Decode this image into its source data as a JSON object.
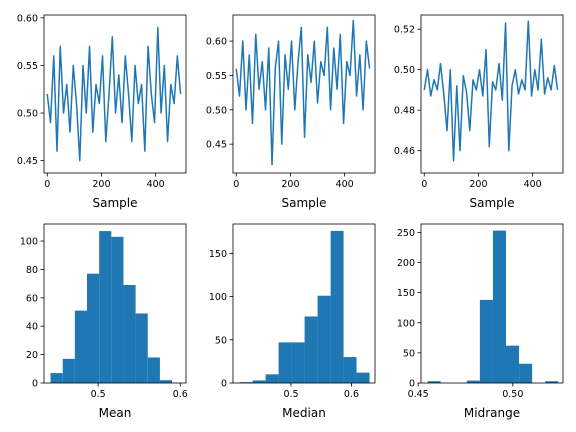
{
  "colors": {
    "series": "#1f77b4",
    "axes": "#000000",
    "background": "#ffffff"
  },
  "chart_data": [
    {
      "type": "line",
      "xlabel": "Sample",
      "ylabel": "",
      "xlim": [
        -12,
        512
      ],
      "ylim": [
        0.437,
        0.603
      ],
      "xticks": [
        0,
        200,
        400
      ],
      "xtick_labels": [
        "0",
        "200",
        "400"
      ],
      "yticks": [
        0.45,
        0.5,
        0.55,
        0.6
      ],
      "ytick_labels": [
        "0.45",
        "0.50",
        "0.55",
        "0.60"
      ],
      "grid": false,
      "x": [
        0,
        12,
        24,
        36,
        48,
        60,
        72,
        84,
        96,
        108,
        120,
        132,
        144,
        156,
        168,
        180,
        192,
        204,
        216,
        228,
        240,
        252,
        264,
        276,
        288,
        300,
        312,
        324,
        336,
        348,
        360,
        372,
        384,
        396,
        408,
        420,
        432,
        444,
        456,
        468,
        480,
        492
      ],
      "y": [
        0.52,
        0.49,
        0.56,
        0.46,
        0.57,
        0.5,
        0.53,
        0.48,
        0.55,
        0.51,
        0.45,
        0.55,
        0.5,
        0.57,
        0.48,
        0.53,
        0.51,
        0.56,
        0.47,
        0.52,
        0.58,
        0.5,
        0.54,
        0.49,
        0.56,
        0.52,
        0.47,
        0.55,
        0.51,
        0.53,
        0.46,
        0.57,
        0.52,
        0.49,
        0.59,
        0.5,
        0.55,
        0.47,
        0.53,
        0.51,
        0.56,
        0.52
      ]
    },
    {
      "type": "line",
      "xlabel": "Sample",
      "ylabel": "",
      "xlim": [
        -12,
        512
      ],
      "ylim": [
        0.408,
        0.638
      ],
      "xticks": [
        0,
        200,
        400
      ],
      "xtick_labels": [
        "0",
        "200",
        "400"
      ],
      "yticks": [
        0.45,
        0.5,
        0.55,
        0.6
      ],
      "ytick_labels": [
        "0.45",
        "0.50",
        "0.55",
        "0.60"
      ],
      "grid": false,
      "x": [
        0,
        12,
        24,
        36,
        48,
        60,
        72,
        84,
        96,
        108,
        120,
        132,
        144,
        156,
        168,
        180,
        192,
        204,
        216,
        228,
        240,
        252,
        264,
        276,
        288,
        300,
        312,
        324,
        336,
        348,
        360,
        372,
        384,
        396,
        408,
        420,
        432,
        444,
        456,
        468,
        480,
        492
      ],
      "y": [
        0.56,
        0.52,
        0.6,
        0.5,
        0.58,
        0.48,
        0.61,
        0.53,
        0.57,
        0.5,
        0.59,
        0.42,
        0.56,
        0.6,
        0.45,
        0.58,
        0.53,
        0.6,
        0.5,
        0.57,
        0.62,
        0.46,
        0.58,
        0.54,
        0.6,
        0.51,
        0.57,
        0.55,
        0.62,
        0.5,
        0.59,
        0.53,
        0.61,
        0.48,
        0.57,
        0.55,
        0.63,
        0.52,
        0.58,
        0.5,
        0.6,
        0.56
      ]
    },
    {
      "type": "line",
      "xlabel": "Sample",
      "ylabel": "",
      "xlim": [
        -12,
        512
      ],
      "ylim": [
        0.449,
        0.527
      ],
      "xticks": [
        0,
        200,
        400
      ],
      "xtick_labels": [
        "0",
        "200",
        "400"
      ],
      "yticks": [
        0.46,
        0.48,
        0.5,
        0.52
      ],
      "ytick_labels": [
        "0.46",
        "0.48",
        "0.50",
        "0.52"
      ],
      "grid": false,
      "x": [
        0,
        12,
        24,
        36,
        48,
        60,
        72,
        84,
        96,
        108,
        120,
        132,
        144,
        156,
        168,
        180,
        192,
        204,
        216,
        228,
        240,
        252,
        264,
        276,
        288,
        300,
        312,
        324,
        336,
        348,
        360,
        372,
        384,
        396,
        408,
        420,
        432,
        444,
        456,
        468,
        480,
        492
      ],
      "y": [
        0.49,
        0.5,
        0.487,
        0.495,
        0.49,
        0.503,
        0.488,
        0.47,
        0.5,
        0.455,
        0.492,
        0.46,
        0.497,
        0.489,
        0.47,
        0.495,
        0.49,
        0.5,
        0.487,
        0.51,
        0.462,
        0.494,
        0.49,
        0.503,
        0.485,
        0.523,
        0.46,
        0.492,
        0.5,
        0.488,
        0.495,
        0.49,
        0.524,
        0.487,
        0.5,
        0.49,
        0.515,
        0.488,
        0.496,
        0.49,
        0.502,
        0.49
      ]
    },
    {
      "type": "bar",
      "xlabel": "Mean",
      "ylabel": "",
      "xlim": [
        0.434,
        0.607
      ],
      "ylim": [
        0,
        112
      ],
      "xticks": [
        0.5,
        0.6
      ],
      "xtick_labels": [
        "0.5",
        "0.6"
      ],
      "yticks": [
        0,
        20,
        40,
        60,
        80,
        100
      ],
      "ytick_labels": [
        "0",
        "20",
        "40",
        "60",
        "80",
        "100"
      ],
      "grid": false,
      "bin_edges": [
        0.442,
        0.4568,
        0.4716,
        0.4864,
        0.5012,
        0.516,
        0.5308,
        0.5456,
        0.5604,
        0.5752,
        0.59
      ],
      "values": [
        7,
        17,
        51,
        77,
        107,
        103,
        69,
        49,
        18,
        2
      ]
    },
    {
      "type": "bar",
      "xlabel": "Median",
      "ylabel": "",
      "xlim": [
        0.404,
        0.639
      ],
      "ylim": [
        0,
        184
      ],
      "xticks": [
        0.5,
        0.6
      ],
      "xtick_labels": [
        "0.5",
        "0.6"
      ],
      "yticks": [
        0,
        50,
        100,
        150
      ],
      "ytick_labels": [
        "0",
        "50",
        "100",
        "150"
      ],
      "grid": false,
      "bin_edges": [
        0.415,
        0.4365,
        0.458,
        0.4795,
        0.501,
        0.5225,
        0.544,
        0.5655,
        0.587,
        0.6085,
        0.63
      ],
      "values": [
        1,
        3,
        10,
        47,
        47,
        77,
        101,
        176,
        30,
        12
      ]
    },
    {
      "type": "bar",
      "xlabel": "Midrange",
      "ylabel": "",
      "xlim": [
        0.4515,
        0.5265
      ],
      "ylim": [
        0,
        264
      ],
      "xticks": [
        0.45,
        0.5
      ],
      "xtick_labels": [
        "0.45",
        "0.50"
      ],
      "yticks": [
        0,
        50,
        100,
        150,
        200,
        250
      ],
      "ytick_labels": [
        "0",
        "50",
        "100",
        "150",
        "200",
        "250"
      ],
      "grid": false,
      "bin_edges": [
        0.455,
        0.4619,
        0.4688,
        0.4757,
        0.4826,
        0.4895,
        0.4964,
        0.5033,
        0.5102,
        0.5171,
        0.524
      ],
      "values": [
        3,
        0,
        0,
        4,
        138,
        253,
        62,
        32,
        0,
        3
      ]
    }
  ]
}
